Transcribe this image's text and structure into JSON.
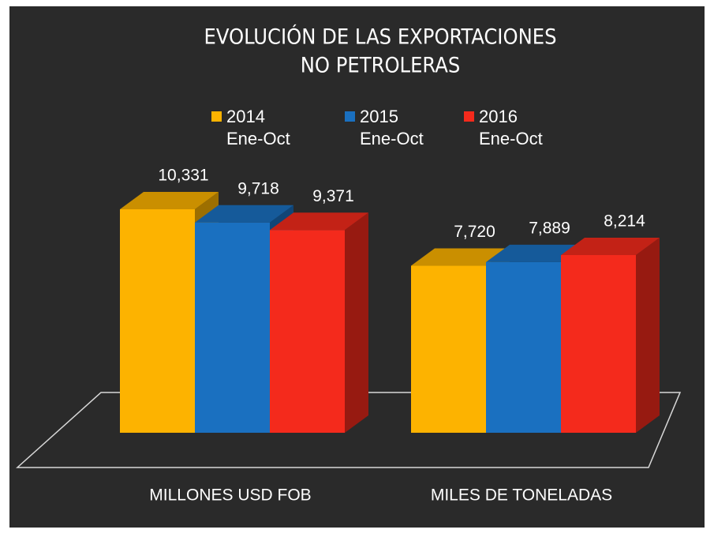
{
  "chart_data": {
    "type": "bar3d",
    "title": [
      "EVOLUCIÓN DE LAS EXPORTACIONES",
      "NO PETROLERAS"
    ],
    "categories": [
      "MILLONES USD FOB",
      "MILES DE TONELADAS"
    ],
    "series": [
      {
        "name": "2014 Ene-Oct",
        "color": "#fdb300",
        "values": [
          10331,
          7720
        ],
        "value_labels": [
          "10,331",
          "7,720"
        ]
      },
      {
        "name": "2015 Ene-Oct",
        "color": "#1a70c0",
        "values": [
          9718,
          7889
        ],
        "value_labels": [
          "9,718",
          "7,889"
        ]
      },
      {
        "name": "2016 Ene-Oct",
        "color": "#f42a1c",
        "values": [
          9371,
          8214
        ],
        "value_labels": [
          "9,371",
          "8,214"
        ]
      }
    ]
  }
}
